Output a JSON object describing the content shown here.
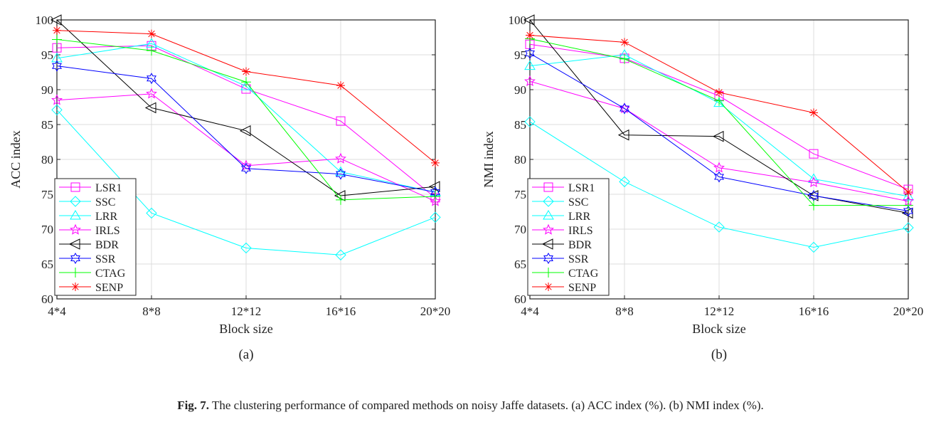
{
  "chart_data": [
    {
      "type": "line",
      "panel_label": "(a)",
      "xlabel": "Block size",
      "ylabel": "ACC index",
      "categories": [
        "4*4",
        "8*8",
        "12*12",
        "16*16",
        "20*20"
      ],
      "ylim": [
        60,
        100
      ],
      "yticks": [
        60,
        65,
        70,
        75,
        80,
        85,
        90,
        95,
        100
      ],
      "grid": true,
      "legend_position": "bottom-left",
      "series": [
        {
          "name": "LSR1",
          "color": "#ff00ff",
          "marker": "square",
          "values": [
            96.0,
            96.3,
            90.1,
            85.5,
            74.5
          ]
        },
        {
          "name": "SSC",
          "color": "#00ffff",
          "marker": "diamond",
          "values": [
            87.1,
            72.3,
            67.3,
            66.3,
            71.7
          ]
        },
        {
          "name": "LRR",
          "color": "#00ffff",
          "marker": "triangle-up",
          "values": [
            94.5,
            96.6,
            90.5,
            78.2,
            75.3
          ]
        },
        {
          "name": "IRLS",
          "color": "#ff00ff",
          "marker": "pentagram",
          "values": [
            88.5,
            89.4,
            79.1,
            80.1,
            74.0
          ]
        },
        {
          "name": "BDR",
          "color": "#000000",
          "marker": "triangle-left",
          "values": [
            100.0,
            87.4,
            84.1,
            74.8,
            76.1
          ]
        },
        {
          "name": "SSR",
          "color": "#0000ff",
          "marker": "hexagram",
          "values": [
            93.4,
            91.6,
            78.7,
            77.9,
            75.3
          ]
        },
        {
          "name": "CTAG",
          "color": "#00ff00",
          "marker": "plus",
          "values": [
            97.2,
            95.6,
            91.1,
            74.2,
            74.7
          ]
        },
        {
          "name": "SENP",
          "color": "#ff0000",
          "marker": "asterisk",
          "values": [
            98.5,
            98.0,
            92.6,
            90.6,
            79.5
          ]
        }
      ]
    },
    {
      "type": "line",
      "panel_label": "(b)",
      "xlabel": "Block size",
      "ylabel": "NMI index",
      "categories": [
        "4*4",
        "8*8",
        "12*12",
        "16*16",
        "20*20"
      ],
      "ylim": [
        60,
        100
      ],
      "yticks": [
        60,
        65,
        70,
        75,
        80,
        85,
        90,
        95,
        100
      ],
      "grid": true,
      "legend_position": "bottom-left",
      "series": [
        {
          "name": "LSR1",
          "color": "#ff00ff",
          "marker": "square",
          "values": [
            96.5,
            94.5,
            89.1,
            80.8,
            75.7
          ]
        },
        {
          "name": "SSC",
          "color": "#00ffff",
          "marker": "diamond",
          "values": [
            85.4,
            76.8,
            70.3,
            67.4,
            70.2
          ]
        },
        {
          "name": "LRR",
          "color": "#00ffff",
          "marker": "triangle-up",
          "values": [
            93.4,
            95.0,
            88.1,
            77.2,
            74.7
          ]
        },
        {
          "name": "IRLS",
          "color": "#ff00ff",
          "marker": "pentagram",
          "values": [
            91.2,
            87.3,
            78.8,
            76.7,
            74.0
          ]
        },
        {
          "name": "BDR",
          "color": "#000000",
          "marker": "triangle-left",
          "values": [
            100.0,
            83.5,
            83.3,
            74.8,
            72.3
          ]
        },
        {
          "name": "SSR",
          "color": "#0000ff",
          "marker": "hexagram",
          "values": [
            95.2,
            87.3,
            77.5,
            74.8,
            72.6
          ]
        },
        {
          "name": "CTAG",
          "color": "#00ff00",
          "marker": "plus",
          "values": [
            97.3,
            94.4,
            88.4,
            73.4,
            73.4
          ]
        },
        {
          "name": "SENP",
          "color": "#ff0000",
          "marker": "asterisk",
          "values": [
            97.8,
            96.8,
            89.6,
            86.7,
            75.3
          ]
        }
      ]
    }
  ],
  "caption": {
    "label": "Fig. 7.",
    "text": " The clustering performance of compared methods on noisy Jaffe datasets. (a) ACC index (%). (b) NMI index (%)."
  }
}
